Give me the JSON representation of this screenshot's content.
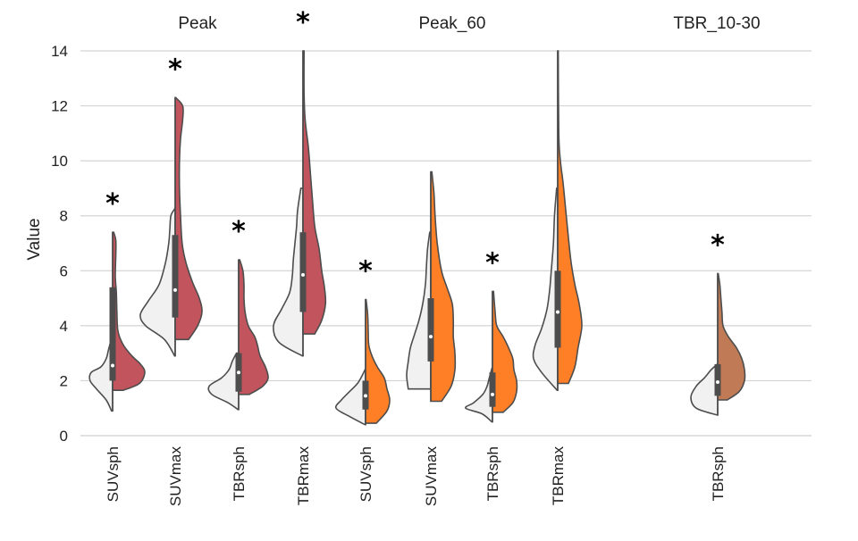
{
  "chart_data": {
    "type": "split-violin",
    "ylabel": "Value",
    "ylim": [
      0,
      14
    ],
    "yticks": [
      0,
      2,
      4,
      6,
      8,
      10,
      12,
      14
    ],
    "grid": "horizontal",
    "left_half_color": "#f2f1f1",
    "groups": [
      {
        "name": "Peak",
        "color": "#c1545d"
      },
      {
        "name": "Peak_60",
        "color": "#ff7f27"
      },
      {
        "name": "TBR_10-30",
        "color": "#c07a55"
      }
    ],
    "violins": [
      {
        "label": "SUVsph",
        "group": "Peak",
        "marker": "*",
        "left": {
          "min": 0.9,
          "max": 3.6,
          "median": 2.55,
          "q1": 2.0,
          "q3": 3.55,
          "shape": [
            [
              0.9,
              0.02
            ],
            [
              1.3,
              0.12
            ],
            [
              1.7,
              0.3
            ],
            [
              2.0,
              0.42
            ],
            [
              2.3,
              0.4
            ],
            [
              2.5,
              0.22
            ],
            [
              2.8,
              0.12
            ],
            [
              3.1,
              0.08
            ],
            [
              3.4,
              0.04
            ],
            [
              3.6,
              0.01
            ]
          ]
        },
        "right": {
          "min": 1.65,
          "max": 7.4,
          "median": 2.55,
          "q1": 2.0,
          "q3": 5.4,
          "shape": [
            [
              1.65,
              0.2
            ],
            [
              1.9,
              0.5
            ],
            [
              2.3,
              0.6
            ],
            [
              2.6,
              0.52
            ],
            [
              2.9,
              0.36
            ],
            [
              3.3,
              0.2
            ],
            [
              3.8,
              0.1
            ],
            [
              4.5,
              0.08
            ],
            [
              5.2,
              0.07
            ],
            [
              5.8,
              0.05
            ],
            [
              6.6,
              0.06
            ],
            [
              7.1,
              0.06
            ],
            [
              7.4,
              0.02
            ]
          ]
        }
      },
      {
        "label": "SUVmax",
        "group": "Peak",
        "marker": "*",
        "left": {
          "min": 2.9,
          "max": 8.25,
          "median": 5.3,
          "q1": 4.3,
          "q3": 7.3,
          "shape": [
            [
              2.9,
              0.01
            ],
            [
              3.5,
              0.2
            ],
            [
              4.0,
              0.55
            ],
            [
              4.4,
              0.65
            ],
            [
              4.9,
              0.5
            ],
            [
              5.5,
              0.3
            ],
            [
              6.3,
              0.18
            ],
            [
              7.0,
              0.12
            ],
            [
              7.5,
              0.1
            ],
            [
              8.0,
              0.08
            ],
            [
              8.25,
              0.01
            ]
          ]
        },
        "right": {
          "min": 3.5,
          "max": 12.3,
          "median": 5.3,
          "q1": 4.3,
          "q3": 7.3,
          "shape": [
            [
              3.5,
              0.25
            ],
            [
              4.0,
              0.42
            ],
            [
              4.5,
              0.5
            ],
            [
              5.0,
              0.45
            ],
            [
              5.6,
              0.32
            ],
            [
              6.3,
              0.2
            ],
            [
              7.0,
              0.13
            ],
            [
              8.0,
              0.1
            ],
            [
              9.0,
              0.08
            ],
            [
              10.0,
              0.08
            ],
            [
              10.8,
              0.1
            ],
            [
              11.5,
              0.14
            ],
            [
              12.0,
              0.14
            ],
            [
              12.3,
              0.01
            ]
          ]
        }
      },
      {
        "label": "TBRsph",
        "group": "Peak",
        "marker": "*",
        "left": {
          "min": 0.95,
          "max": 3.0,
          "median": 2.3,
          "q1": 1.6,
          "q3": 3.0,
          "shape": [
            [
              0.95,
              0.01
            ],
            [
              1.2,
              0.2
            ],
            [
              1.5,
              0.5
            ],
            [
              1.8,
              0.55
            ],
            [
              2.1,
              0.32
            ],
            [
              2.4,
              0.18
            ],
            [
              2.7,
              0.12
            ],
            [
              3.0,
              0.04
            ]
          ]
        },
        "right": {
          "min": 1.5,
          "max": 6.4,
          "median": 2.3,
          "q1": 1.6,
          "q3": 3.0,
          "shape": [
            [
              1.5,
              0.2
            ],
            [
              1.8,
              0.45
            ],
            [
              2.1,
              0.55
            ],
            [
              2.5,
              0.5
            ],
            [
              2.9,
              0.4
            ],
            [
              3.3,
              0.35
            ],
            [
              3.6,
              0.3
            ],
            [
              4.0,
              0.18
            ],
            [
              4.5,
              0.12
            ],
            [
              5.0,
              0.1
            ],
            [
              5.5,
              0.1
            ],
            [
              6.0,
              0.08
            ],
            [
              6.4,
              0.02
            ]
          ]
        }
      },
      {
        "label": "TBRmax",
        "group": "Peak",
        "marker": "*",
        "left": {
          "min": 2.9,
          "max": 9.0,
          "median": 5.85,
          "q1": 4.5,
          "q3": 7.4,
          "shape": [
            [
              2.9,
              0.01
            ],
            [
              3.4,
              0.45
            ],
            [
              4.0,
              0.55
            ],
            [
              4.6,
              0.4
            ],
            [
              5.2,
              0.25
            ],
            [
              5.8,
              0.2
            ],
            [
              6.4,
              0.18
            ],
            [
              7.0,
              0.15
            ],
            [
              7.6,
              0.12
            ],
            [
              8.2,
              0.1
            ],
            [
              9.0,
              0.04
            ]
          ]
        },
        "right": {
          "min": 3.7,
          "max": 14.0,
          "median": 5.85,
          "q1": 4.5,
          "q3": 7.4,
          "shape": [
            [
              3.7,
              0.22
            ],
            [
              4.2,
              0.35
            ],
            [
              4.8,
              0.42
            ],
            [
              5.4,
              0.4
            ],
            [
              6.0,
              0.35
            ],
            [
              6.8,
              0.3
            ],
            [
              7.6,
              0.22
            ],
            [
              8.5,
              0.18
            ],
            [
              9.5,
              0.14
            ],
            [
              10.5,
              0.1
            ],
            [
              11.5,
              0.04
            ],
            [
              12.5,
              0.02
            ],
            [
              14.0,
              0.02
            ]
          ]
        }
      },
      {
        "label": "SUVsph",
        "group": "Peak_60",
        "marker": "*",
        "left": {
          "min": 0.4,
          "max": 2.4,
          "median": 1.45,
          "q1": 0.95,
          "q3": 2.0,
          "shape": [
            [
              0.4,
              0.01
            ],
            [
              0.7,
              0.3
            ],
            [
              1.0,
              0.55
            ],
            [
              1.3,
              0.45
            ],
            [
              1.6,
              0.3
            ],
            [
              1.9,
              0.15
            ],
            [
              2.2,
              0.06
            ],
            [
              2.4,
              0.01
            ]
          ]
        },
        "right": {
          "min": 0.45,
          "max": 4.95,
          "median": 1.45,
          "q1": 0.95,
          "q3": 2.0,
          "shape": [
            [
              0.45,
              0.2
            ],
            [
              0.9,
              0.4
            ],
            [
              1.3,
              0.45
            ],
            [
              1.7,
              0.4
            ],
            [
              2.1,
              0.35
            ],
            [
              2.5,
              0.22
            ],
            [
              2.9,
              0.12
            ],
            [
              3.3,
              0.06
            ],
            [
              3.8,
              0.05
            ],
            [
              4.4,
              0.04
            ],
            [
              4.95,
              0.01
            ]
          ]
        }
      },
      {
        "label": "SUVmax",
        "group": "Peak_60",
        "marker": "",
        "left": {
          "min": 1.7,
          "max": 7.4,
          "median": 3.6,
          "q1": 2.7,
          "q3": 5.0,
          "shape": [
            [
              1.7,
              0.42
            ],
            [
              2.2,
              0.45
            ],
            [
              2.7,
              0.42
            ],
            [
              3.2,
              0.38
            ],
            [
              3.7,
              0.3
            ],
            [
              4.2,
              0.22
            ],
            [
              4.8,
              0.15
            ],
            [
              5.5,
              0.1
            ],
            [
              6.2,
              0.08
            ],
            [
              6.8,
              0.06
            ],
            [
              7.4,
              0.02
            ]
          ]
        },
        "right": {
          "min": 1.25,
          "max": 9.6,
          "median": 3.6,
          "q1": 2.7,
          "q3": 5.0,
          "shape": [
            [
              1.25,
              0.2
            ],
            [
              1.8,
              0.38
            ],
            [
              2.4,
              0.45
            ],
            [
              3.0,
              0.45
            ],
            [
              3.6,
              0.42
            ],
            [
              4.2,
              0.42
            ],
            [
              4.8,
              0.4
            ],
            [
              5.4,
              0.3
            ],
            [
              6.0,
              0.2
            ],
            [
              7.0,
              0.12
            ],
            [
              8.0,
              0.08
            ],
            [
              8.8,
              0.06
            ],
            [
              9.6,
              0.02
            ]
          ]
        }
      },
      {
        "label": "TBRsph",
        "group": "Peak_60",
        "marker": "*",
        "left": {
          "min": 0.5,
          "max": 2.45,
          "median": 1.5,
          "q1": 1.05,
          "q3": 2.3,
          "shape": [
            [
              0.5,
              0.01
            ],
            [
              0.8,
              0.2
            ],
            [
              1.0,
              0.5
            ],
            [
              1.2,
              0.35
            ],
            [
              1.5,
              0.18
            ],
            [
              1.8,
              0.1
            ],
            [
              2.1,
              0.06
            ],
            [
              2.45,
              0.01
            ]
          ]
        },
        "right": {
          "min": 0.85,
          "max": 5.25,
          "median": 1.5,
          "q1": 1.05,
          "q3": 2.3,
          "shape": [
            [
              0.85,
              0.2
            ],
            [
              1.2,
              0.38
            ],
            [
              1.6,
              0.45
            ],
            [
              2.0,
              0.45
            ],
            [
              2.4,
              0.4
            ],
            [
              2.8,
              0.38
            ],
            [
              3.2,
              0.3
            ],
            [
              3.6,
              0.2
            ],
            [
              4.0,
              0.08
            ],
            [
              4.5,
              0.05
            ],
            [
              5.25,
              0.02
            ]
          ]
        }
      },
      {
        "label": "TBRmax",
        "group": "Peak_60",
        "marker": "",
        "left": {
          "min": 1.65,
          "max": 9.0,
          "median": 4.5,
          "q1": 3.2,
          "q3": 6.0,
          "shape": [
            [
              1.65,
              0.01
            ],
            [
              2.3,
              0.3
            ],
            [
              2.8,
              0.45
            ],
            [
              3.3,
              0.42
            ],
            [
              3.9,
              0.3
            ],
            [
              4.6,
              0.2
            ],
            [
              5.3,
              0.15
            ],
            [
              6.0,
              0.12
            ],
            [
              7.0,
              0.08
            ],
            [
              8.0,
              0.06
            ],
            [
              9.0,
              0.02
            ]
          ]
        },
        "right": {
          "min": 1.9,
          "max": 14.0,
          "median": 4.5,
          "q1": 3.2,
          "q3": 6.0,
          "shape": [
            [
              1.9,
              0.2
            ],
            [
              2.5,
              0.32
            ],
            [
              3.2,
              0.38
            ],
            [
              4.0,
              0.45
            ],
            [
              4.8,
              0.4
            ],
            [
              5.5,
              0.32
            ],
            [
              6.3,
              0.25
            ],
            [
              7.2,
              0.2
            ],
            [
              8.2,
              0.15
            ],
            [
              9.2,
              0.1
            ],
            [
              10.0,
              0.05
            ],
            [
              11.0,
              0.02
            ],
            [
              14.0,
              0.01
            ]
          ]
        }
      },
      {
        "label": "TBRsph",
        "group": "TBR_10-30",
        "marker": "*",
        "left": {
          "min": 0.75,
          "max": 2.6,
          "median": 1.95,
          "q1": 1.45,
          "q3": 2.6,
          "shape": [
            [
              0.75,
              0.01
            ],
            [
              1.0,
              0.4
            ],
            [
              1.4,
              0.5
            ],
            [
              1.8,
              0.4
            ],
            [
              2.1,
              0.25
            ],
            [
              2.4,
              0.12
            ],
            [
              2.6,
              0.01
            ]
          ]
        },
        "right": {
          "min": 1.3,
          "max": 5.9,
          "median": 1.95,
          "q1": 1.45,
          "q3": 2.6,
          "shape": [
            [
              1.3,
              0.18
            ],
            [
              1.6,
              0.4
            ],
            [
              2.0,
              0.5
            ],
            [
              2.4,
              0.5
            ],
            [
              2.8,
              0.45
            ],
            [
              3.2,
              0.35
            ],
            [
              3.6,
              0.2
            ],
            [
              4.0,
              0.1
            ],
            [
              4.5,
              0.08
            ],
            [
              5.0,
              0.06
            ],
            [
              5.5,
              0.04
            ],
            [
              5.9,
              0.01
            ]
          ]
        }
      }
    ]
  }
}
